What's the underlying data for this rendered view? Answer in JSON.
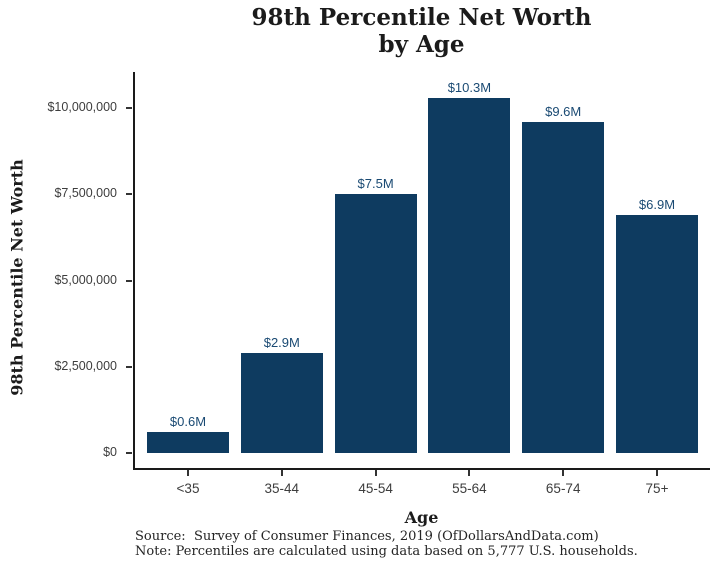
{
  "chart_data": {
    "type": "bar",
    "title_line1": "98th Percentile Net Worth",
    "title_line2": "by Age",
    "xlabel": "Age",
    "ylabel": "98th Percentile Net Worth",
    "categories": [
      "<35",
      "35-44",
      "45-54",
      "55-64",
      "65-74",
      "75+"
    ],
    "values": [
      600000,
      2900000,
      7500000,
      10300000,
      9600000,
      6900000
    ],
    "values_millions": [
      0.6,
      2.9,
      7.5,
      10.3,
      9.6,
      6.9
    ],
    "bar_labels": [
      "$0.6M",
      "$2.9M",
      "$7.5M",
      "$10.3M",
      "$9.6M",
      "$6.9M"
    ],
    "y_ticks_millions": [
      0,
      2.5,
      5,
      7.5,
      10
    ],
    "y_tick_labels": [
      "$0",
      "$2,500,000",
      "$5,000,000",
      "$7,500,000",
      "$10,000,000"
    ],
    "ylim": [
      0,
      11000000
    ],
    "grid": false,
    "legend": false,
    "colors": {
      "bar_fill": "#0e3b60",
      "bar_label": "#1a4a73",
      "axis_line": "#1a1a1a",
      "tick_text": "#3d3d3d",
      "title_text": "#1b1b1b"
    },
    "caption": {
      "source_line": "Source:  Survey of Consumer Finances, 2019 (OfDollarsAndData.com)",
      "note_line": "Note: Percentiles are calculated using data based on 5,777 U.S. households."
    }
  }
}
